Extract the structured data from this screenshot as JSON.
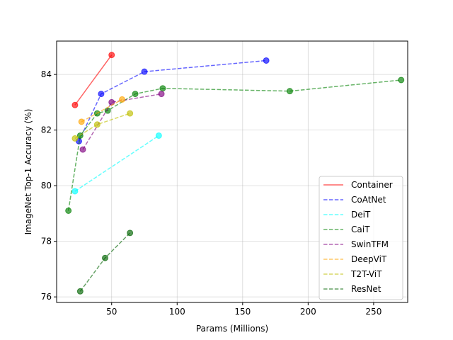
{
  "chart_data": {
    "type": "line",
    "xlabel": "Params (Millions)",
    "ylabel": "ImageNet Top-1 Accuracy (%)",
    "xlim": [
      8,
      276
    ],
    "ylim": [
      75.8,
      85.2
    ],
    "xticks": [
      50,
      100,
      150,
      200,
      250
    ],
    "yticks": [
      76,
      78,
      80,
      82,
      84
    ],
    "grid": true,
    "legend_position": "lower right",
    "series": [
      {
        "name": "Container",
        "color": "#ff0000",
        "dash": "solid",
        "points": [
          [
            22,
            82.9
          ],
          [
            50,
            84.7
          ]
        ]
      },
      {
        "name": "CoAtNet",
        "color": "#0000ff",
        "dash": "dashed",
        "points": [
          [
            25,
            81.6
          ],
          [
            42,
            83.3
          ],
          [
            75,
            84.1
          ],
          [
            168,
            84.5
          ]
        ]
      },
      {
        "name": "DeiT",
        "color": "#00ffff",
        "dash": "dashed",
        "points": [
          [
            22,
            79.8
          ],
          [
            86,
            81.8
          ]
        ]
      },
      {
        "name": "CaiT",
        "color": "#008000",
        "dash": "dashed",
        "points": [
          [
            17,
            79.1
          ],
          [
            26,
            81.8
          ],
          [
            39,
            82.6
          ],
          [
            47,
            82.7
          ],
          [
            68,
            83.3
          ],
          [
            89,
            83.5
          ],
          [
            186,
            83.4
          ],
          [
            271,
            83.8
          ]
        ]
      },
      {
        "name": "SwinTFM",
        "color": "#800080",
        "dash": "dashed",
        "points": [
          [
            28,
            81.3
          ],
          [
            50,
            83.0
          ],
          [
            88,
            83.3
          ]
        ]
      },
      {
        "name": "DeepViT",
        "color": "#ffa500",
        "dash": "dashed",
        "points": [
          [
            27,
            82.3
          ],
          [
            58,
            83.1
          ]
        ]
      },
      {
        "name": "T2T-ViT",
        "color": "#bfbf00",
        "dash": "dashed",
        "points": [
          [
            22,
            81.7
          ],
          [
            39,
            82.2
          ],
          [
            64,
            82.6
          ]
        ]
      },
      {
        "name": "ResNet",
        "color": "#006400",
        "dash": "dashed",
        "points": [
          [
            26,
            76.2
          ],
          [
            45,
            77.4
          ],
          [
            64,
            78.3
          ]
        ]
      }
    ]
  }
}
